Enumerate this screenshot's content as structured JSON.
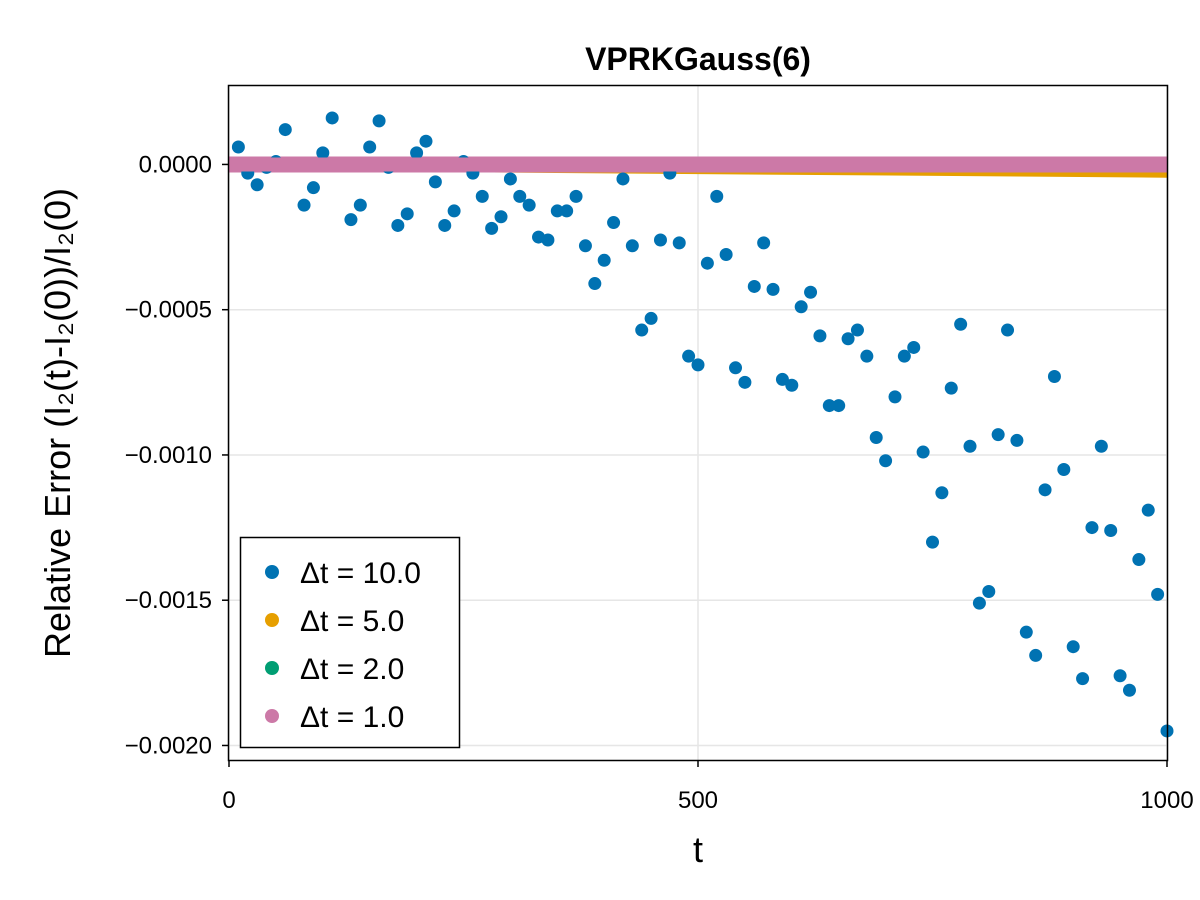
{
  "chart_data": {
    "type": "scatter",
    "title": "VPRKGauss(6)",
    "xlabel": "t",
    "ylabel": "Relative Error (I₂(t)-I₂(0))/I₂(0)",
    "xlim": [
      0,
      1000
    ],
    "ylim": [
      -0.00205,
      0.00027
    ],
    "x_ticks": [
      0,
      500,
      1000
    ],
    "x_tick_labels": [
      "0",
      "500",
      "1000"
    ],
    "y_ticks": [
      0.0,
      -0.0005,
      -0.001,
      -0.0015,
      -0.002
    ],
    "y_tick_labels": [
      "0.0000",
      "−0.0005",
      "−0.0010",
      "−0.0015",
      "−0.0020"
    ],
    "grid": true,
    "legend_position": "bottom-left",
    "series": [
      {
        "name": "Δt = 10.0",
        "color": "#0072b2",
        "x": [
          10,
          20,
          30,
          40,
          50,
          60,
          70,
          80,
          90,
          100,
          110,
          120,
          130,
          140,
          150,
          160,
          170,
          180,
          190,
          200,
          210,
          220,
          230,
          240,
          250,
          260,
          270,
          280,
          290,
          300,
          310,
          320,
          330,
          340,
          350,
          360,
          370,
          380,
          390,
          400,
          410,
          420,
          430,
          440,
          450,
          460,
          470,
          480,
          490,
          500,
          510,
          520,
          530,
          540,
          550,
          560,
          570,
          580,
          590,
          600,
          610,
          620,
          630,
          640,
          650,
          660,
          670,
          680,
          690,
          700,
          710,
          720,
          730,
          740,
          750,
          760,
          770,
          780,
          790,
          800,
          810,
          820,
          830,
          840,
          850,
          860,
          870,
          880,
          890,
          900,
          910,
          920,
          930,
          940,
          950,
          960,
          970,
          980,
          990,
          1000
        ],
        "y": [
          6e-05,
          -3e-05,
          -7e-05,
          -1e-05,
          1e-05,
          0.00012,
          0.0,
          -0.00014,
          -8e-05,
          4e-05,
          0.00016,
          0.0,
          -0.00019,
          -0.00014,
          6e-05,
          0.00015,
          -1e-05,
          -0.00021,
          -0.00017,
          4e-05,
          8e-05,
          -6e-05,
          -0.00021,
          -0.00016,
          1e-05,
          -3e-05,
          -0.00011,
          -0.00022,
          -0.00018,
          -5e-05,
          -0.00011,
          -0.00014,
          -0.00025,
          -0.00026,
          -0.00016,
          -0.00016,
          -0.00011,
          -0.00028,
          -0.00041,
          -0.00033,
          -0.0002,
          -5e-05,
          -0.00028,
          -0.00057,
          -0.00053,
          -0.00026,
          -3e-05,
          -0.00027,
          -0.00066,
          -0.00069,
          -0.00034,
          -0.00011,
          -0.00031,
          -0.0007,
          -0.00075,
          -0.00042,
          -0.00027,
          -0.00043,
          -0.00074,
          -0.00076,
          -0.00049,
          -0.00044,
          -0.00059,
          -0.00083,
          -0.00083,
          -0.0006,
          -0.00057,
          -0.00066,
          -0.00094,
          -0.00102,
          -0.0008,
          -0.00066,
          -0.00063,
          -0.00099,
          -0.0013,
          -0.00113,
          -0.00077,
          -0.00055,
          -0.00097,
          -0.00151,
          -0.00147,
          -0.00093,
          -0.00057,
          -0.00095,
          -0.00161,
          -0.00169,
          -0.00112,
          -0.00073,
          -0.00105,
          -0.00166,
          -0.00177,
          -0.00125,
          -0.00097,
          -0.00126,
          -0.00176,
          -0.00181,
          -0.00136,
          -0.00119,
          -0.00148,
          -0.00195
        ]
      },
      {
        "name": "Δt = 5.0",
        "color": "#e69f00",
        "x": [
          0,
          1000
        ],
        "y": [
          0.0,
          -2.5e-05
        ]
      },
      {
        "name": "Δt = 2.0",
        "color": "#009e73",
        "x": [
          0,
          1000
        ],
        "y": [
          0.0,
          -5e-06
        ]
      },
      {
        "name": "Δt = 1.0",
        "color": "#cc79a7",
        "x": [
          0,
          1000
        ],
        "y": [
          0.0,
          0.0
        ]
      }
    ]
  }
}
